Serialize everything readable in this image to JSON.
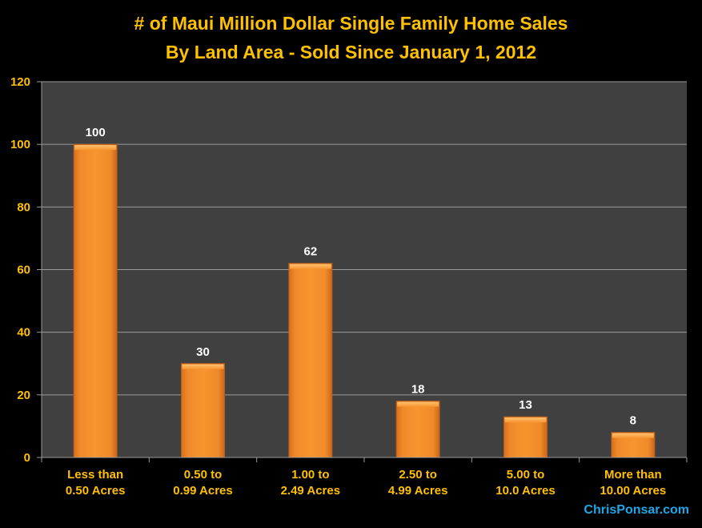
{
  "chart_data": {
    "type": "bar",
    "title": "# of Maui Million Dollar Single Family Home Sales",
    "subtitle": "By Land Area - Sold Since January 1, 2012",
    "categories": [
      [
        "Less than",
        "0.50 Acres"
      ],
      [
        "0.50 to",
        "0.99 Acres"
      ],
      [
        "1.00 to",
        "2.49 Acres"
      ],
      [
        "2.50 to",
        "4.99 Acres"
      ],
      [
        "5.00 to",
        "10.0 Acres"
      ],
      [
        "More than",
        "10.00 Acres"
      ]
    ],
    "values": [
      100,
      30,
      62,
      18,
      13,
      8
    ],
    "data_labels": [
      "100",
      "30",
      "62",
      "18",
      "13",
      "8"
    ],
    "xlabel": "",
    "ylabel": "",
    "ylim": [
      0,
      120
    ],
    "yticks": [
      "0",
      "20",
      "40",
      "60",
      "80",
      "100",
      "120"
    ],
    "grid": true,
    "colors": {
      "bar": "#f5922f",
      "plot_bg": "#404040",
      "text": "#ffc000",
      "label": "#ffffff",
      "grid": "#9a9a9a"
    }
  },
  "credit": "ChrisPonsar.com"
}
